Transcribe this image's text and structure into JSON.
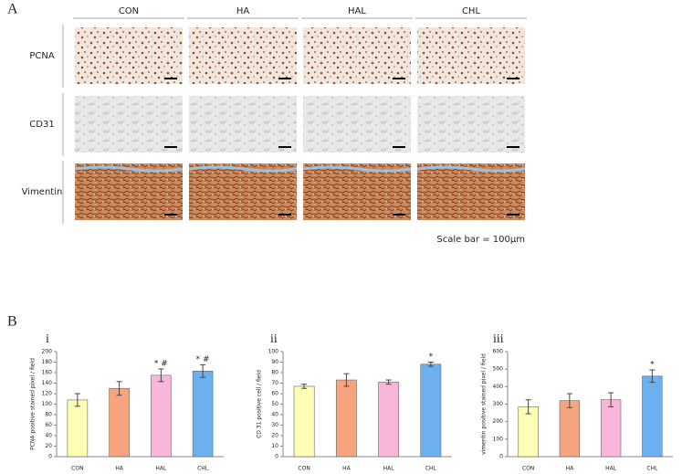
{
  "figure": {
    "panel_a": "A",
    "panel_b": "B",
    "columns": [
      "CON",
      "HA",
      "HAL",
      "CHL"
    ],
    "rows": [
      "PCNA",
      "CD31",
      "Vimentin"
    ],
    "scale_note": "Scale bar = 100μm"
  },
  "chart_data": [
    {
      "type": "bar",
      "title": "i",
      "y_label": "PCNA positive stained pixel / field",
      "categories": [
        "CON",
        "HA",
        "HAL",
        "CHL"
      ],
      "values": [
        108,
        130,
        155,
        163
      ],
      "errors": [
        12,
        13,
        12,
        12
      ],
      "markers": [
        null,
        null,
        "* #",
        "* #"
      ],
      "colors": [
        "#fdfdb4",
        "#f6a47e",
        "#f8b6da",
        "#6cb0f0"
      ],
      "ylim": [
        0,
        200
      ],
      "yticks": [
        0,
        20,
        40,
        60,
        80,
        100,
        120,
        140,
        160,
        180,
        200
      ]
    },
    {
      "type": "bar",
      "title": "ii",
      "y_label": "CD 31 positive cell / field",
      "categories": [
        "CON",
        "HA",
        "HAL",
        "CHL"
      ],
      "values": [
        67,
        73,
        71,
        88
      ],
      "errors": [
        2,
        6,
        2,
        2
      ],
      "markers": [
        null,
        null,
        null,
        "*"
      ],
      "colors": [
        "#fdfdb4",
        "#f6a47e",
        "#f8b6da",
        "#6cb0f0"
      ],
      "ylim": [
        0,
        100
      ],
      "yticks": [
        0,
        10,
        20,
        30,
        40,
        50,
        60,
        70,
        80,
        90,
        100
      ]
    },
    {
      "type": "bar",
      "title": "iii",
      "y_label": "vimentin positive stained pixel / field",
      "categories": [
        "CON",
        "HA",
        "HAL",
        "CHL"
      ],
      "values": [
        285,
        320,
        325,
        460
      ],
      "errors": [
        40,
        40,
        40,
        35
      ],
      "markers": [
        null,
        null,
        null,
        "*"
      ],
      "colors": [
        "#fdfdb4",
        "#f6a47e",
        "#f8b6da",
        "#6cb0f0"
      ],
      "ylim": [
        0,
        600
      ],
      "yticks": [
        0,
        100,
        200,
        300,
        400,
        500,
        600
      ]
    }
  ]
}
